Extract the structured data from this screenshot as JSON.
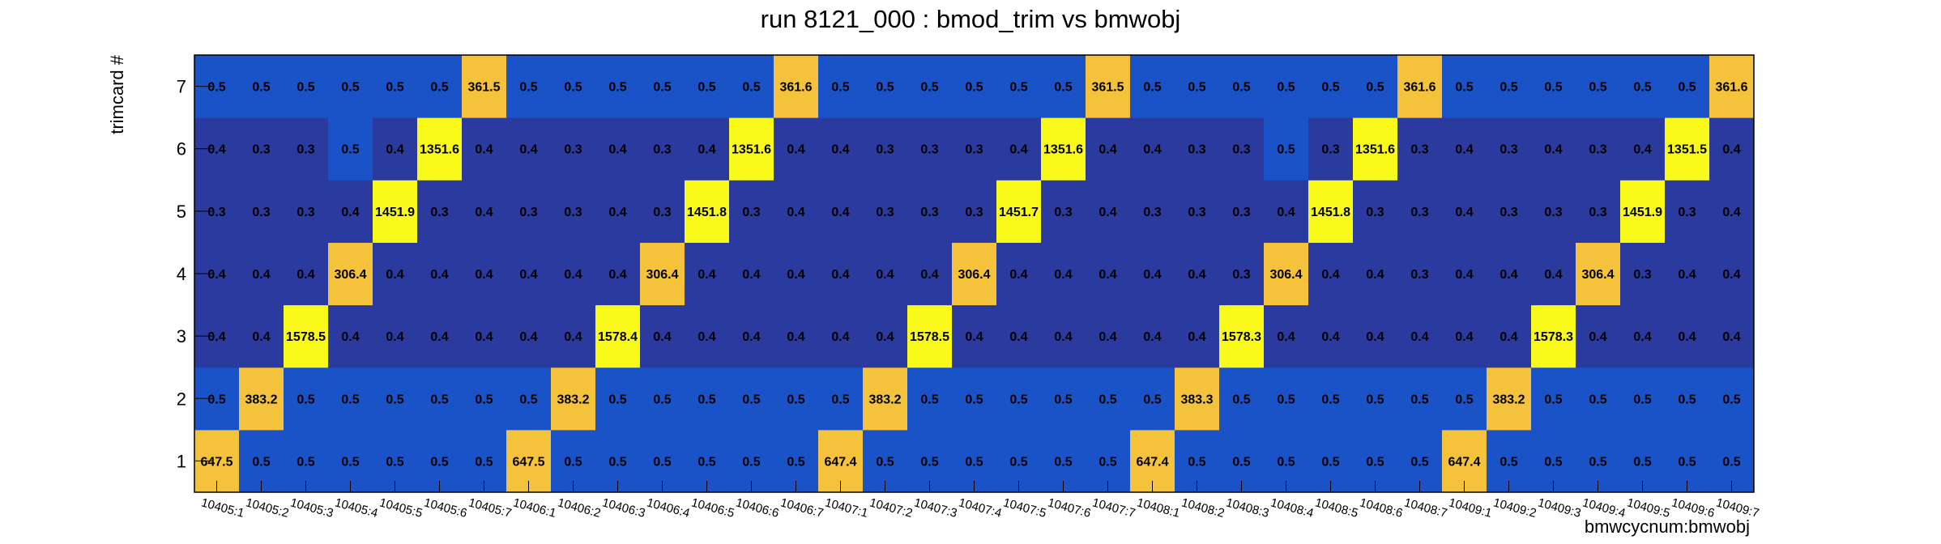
{
  "chart_data": {
    "type": "heatmap",
    "title": "run 8121_000 : bmod_trim vs bmwobj",
    "xlabel": "bmwcycnum:bmwobj",
    "ylabel": "trimcard #",
    "x_categories": [
      "10405:1",
      "10405:2",
      "10405:3",
      "10405:4",
      "10405:5",
      "10405:6",
      "10405:7",
      "10406:1",
      "10406:2",
      "10406:3",
      "10406:4",
      "10406:5",
      "10406:6",
      "10406:7",
      "10407:1",
      "10407:2",
      "10407:3",
      "10407:4",
      "10407:5",
      "10407:6",
      "10407:7",
      "10408:1",
      "10408:2",
      "10408:3",
      "10408:4",
      "10408:5",
      "10408:6",
      "10408:7",
      "10409:1",
      "10409:2",
      "10409:3",
      "10409:4",
      "10409:5",
      "10409:6",
      "10409:7"
    ],
    "y_categories": [
      "1",
      "2",
      "3",
      "4",
      "5",
      "6",
      "7"
    ],
    "rows": [
      [
        "647.5",
        "0.5",
        "0.5",
        "0.5",
        "0.5",
        "0.5",
        "0.5",
        "647.5",
        "0.5",
        "0.5",
        "0.5",
        "0.5",
        "0.5",
        "0.5",
        "647.4",
        "0.5",
        "0.5",
        "0.5",
        "0.5",
        "0.5",
        "0.5",
        "647.4",
        "0.5",
        "0.5",
        "0.5",
        "0.5",
        "0.5",
        "0.5",
        "647.4",
        "0.5",
        "0.5",
        "0.5",
        "0.5",
        "0.5",
        "0.5"
      ],
      [
        "0.5",
        "383.2",
        "0.5",
        "0.5",
        "0.5",
        "0.5",
        "0.5",
        "0.5",
        "383.2",
        "0.5",
        "0.5",
        "0.5",
        "0.5",
        "0.5",
        "0.5",
        "383.2",
        "0.5",
        "0.5",
        "0.5",
        "0.5",
        "0.5",
        "0.5",
        "383.3",
        "0.5",
        "0.5",
        "0.5",
        "0.5",
        "0.5",
        "0.5",
        "383.2",
        "0.5",
        "0.5",
        "0.5",
        "0.5",
        "0.5"
      ],
      [
        "0.4",
        "0.4",
        "1578.5",
        "0.4",
        "0.4",
        "0.4",
        "0.4",
        "0.4",
        "0.4",
        "1578.4",
        "0.4",
        "0.4",
        "0.4",
        "0.4",
        "0.4",
        "0.4",
        "1578.5",
        "0.4",
        "0.4",
        "0.4",
        "0.4",
        "0.4",
        "0.4",
        "1578.3",
        "0.4",
        "0.4",
        "0.4",
        "0.4",
        "0.4",
        "0.4",
        "1578.3",
        "0.4",
        "0.4",
        "0.4",
        "0.4"
      ],
      [
        "0.4",
        "0.4",
        "0.4",
        "306.4",
        "0.4",
        "0.4",
        "0.4",
        "0.4",
        "0.4",
        "0.4",
        "306.4",
        "0.4",
        "0.4",
        "0.4",
        "0.4",
        "0.4",
        "0.4",
        "306.4",
        "0.4",
        "0.4",
        "0.4",
        "0.4",
        "0.4",
        "0.3",
        "306.4",
        "0.4",
        "0.4",
        "0.3",
        "0.4",
        "0.4",
        "0.4",
        "306.4",
        "0.3",
        "0.4",
        "0.4"
      ],
      [
        "0.3",
        "0.3",
        "0.3",
        "0.4",
        "1451.9",
        "0.3",
        "0.4",
        "0.3",
        "0.3",
        "0.4",
        "0.3",
        "1451.8",
        "0.3",
        "0.4",
        "0.4",
        "0.3",
        "0.3",
        "0.3",
        "1451.7",
        "0.3",
        "0.4",
        "0.3",
        "0.3",
        "0.3",
        "0.4",
        "1451.8",
        "0.3",
        "0.3",
        "0.4",
        "0.3",
        "0.3",
        "0.3",
        "1451.9",
        "0.3",
        "0.4"
      ],
      [
        "0.4",
        "0.3",
        "0.3",
        "0.5",
        "0.4",
        "1351.6",
        "0.4",
        "0.4",
        "0.3",
        "0.4",
        "0.3",
        "0.4",
        "1351.6",
        "0.4",
        "0.4",
        "0.3",
        "0.3",
        "0.3",
        "0.4",
        "1351.6",
        "0.4",
        "0.4",
        "0.3",
        "0.3",
        "0.5",
        "0.3",
        "1351.6",
        "0.3",
        "0.4",
        "0.3",
        "0.4",
        "0.3",
        "0.4",
        "1351.5",
        "0.4"
      ],
      [
        "0.5",
        "0.5",
        "0.5",
        "0.5",
        "0.5",
        "0.5",
        "361.5",
        "0.5",
        "0.5",
        "0.5",
        "0.5",
        "0.5",
        "0.5",
        "361.6",
        "0.5",
        "0.5",
        "0.5",
        "0.5",
        "0.5",
        "0.5",
        "361.5",
        "0.5",
        "0.5",
        "0.5",
        "0.5",
        "0.5",
        "0.5",
        "361.6",
        "0.5",
        "0.5",
        "0.5",
        "0.5",
        "0.5",
        "0.5",
        "361.6"
      ]
    ],
    "colors": {
      "low_dark": "#2a3a9e",
      "low_bright": "#1a52c8",
      "mid": "#f5c23c",
      "high": "#fafa1a"
    },
    "grid": false,
    "legend": "none"
  }
}
